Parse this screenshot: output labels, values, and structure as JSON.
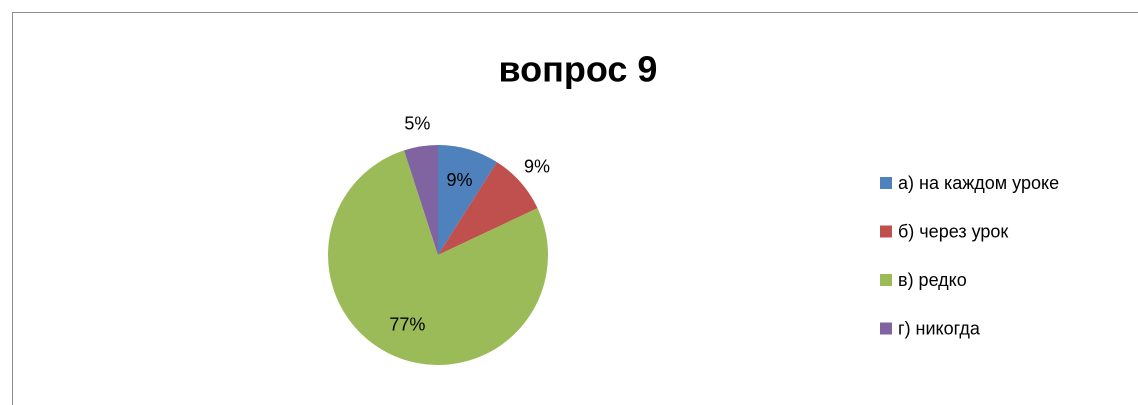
{
  "chart_data": {
    "type": "pie",
    "title": "вопрос 9",
    "categories": [
      "а) на каждом уроке",
      "б) через урок",
      "в) редко",
      "г) никогда"
    ],
    "values": [
      9,
      9,
      77,
      5
    ],
    "value_labels": [
      "9%",
      "9%",
      "77%",
      "5%"
    ],
    "colors": [
      "#4f81bd",
      "#c0504d",
      "#9bbb59",
      "#8064a2"
    ],
    "legend": "right"
  }
}
